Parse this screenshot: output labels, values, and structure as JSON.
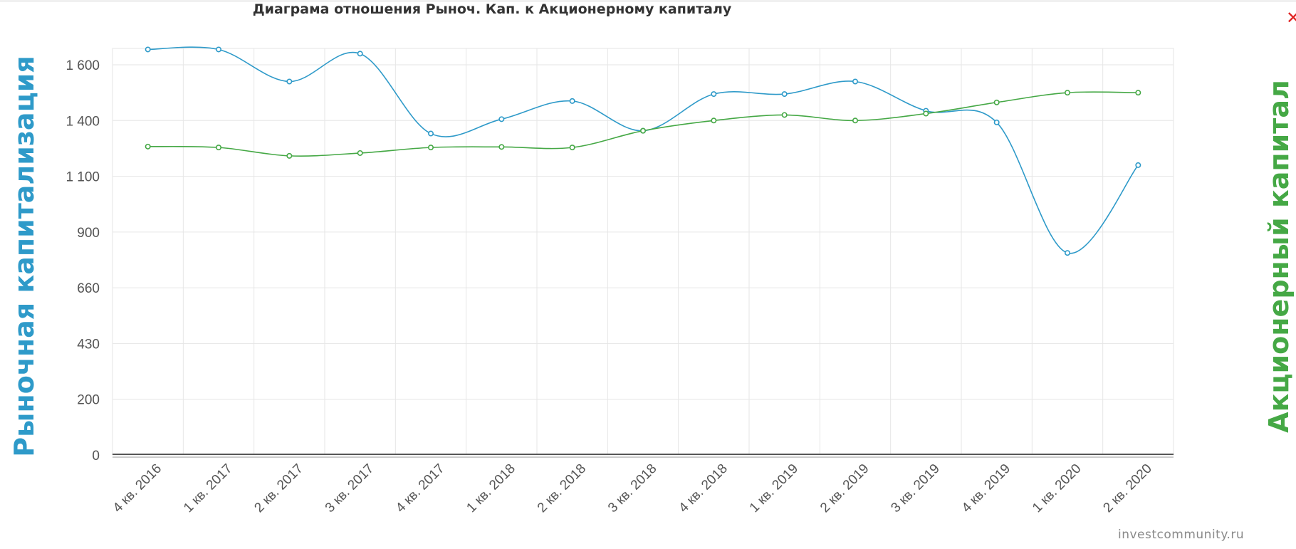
{
  "close_icon": "✕",
  "watermark": "investcommunity.ru",
  "chart_data": {
    "type": "line",
    "title": "Диаграма отношения Рыноч. Кап. к Акционерному капиталу",
    "ylabel_left": "Рыночная капитализация",
    "ylabel_right": "Акционерный капитал",
    "categories": [
      "4 кв. 2016",
      "1 кв. 2017",
      "2 кв. 2017",
      "3 кв. 2017",
      "4 кв. 2017",
      "1 кв. 2018",
      "2 кв. 2018",
      "3 кв. 2018",
      "4 кв. 2018",
      "1 кв. 2019",
      "2 кв. 2019",
      "3 кв. 2019",
      "4 кв. 2019",
      "1 кв. 2020",
      "2 кв. 2020"
    ],
    "y_ticks": [
      "0",
      "200",
      "430",
      "660",
      "900",
      "1 100",
      "1 400",
      "1 600"
    ],
    "grid": true,
    "legend": "none",
    "series": [
      {
        "name": "Рыночная капитализация",
        "color": "#2e9ac9",
        "values": [
          1655,
          1655,
          1540,
          1640,
          1330,
          1405,
          1470,
          1345,
          1495,
          1495,
          1540,
          1435,
          1390,
          810,
          1160
        ]
      },
      {
        "name": "Акционерный капитал",
        "color": "#45a845",
        "values": [
          1260,
          1255,
          1210,
          1225,
          1255,
          1258,
          1255,
          1345,
          1400,
          1420,
          1400,
          1425,
          1465,
          1500,
          1500
        ]
      }
    ]
  }
}
